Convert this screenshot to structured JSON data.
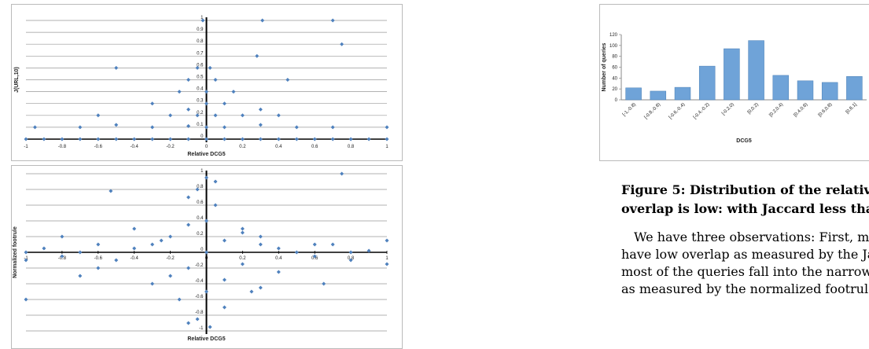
{
  "chart_data": [
    {
      "type": "scatter",
      "x_label": "Relative DCG5",
      "y_label": "J(URL,10)",
      "color": "#4f81bd",
      "grid": true,
      "xlim": [
        -1,
        1
      ],
      "xticks": [
        -1,
        -0.8,
        -0.6,
        -0.4,
        -0.2,
        0,
        0.2,
        0.4,
        0.6,
        0.8,
        1
      ],
      "ylim": [
        0,
        1
      ],
      "yticks": [
        0,
        0.1,
        0.2,
        0.3,
        0.4,
        0.5,
        0.6,
        0.7,
        0.8,
        0.9,
        1
      ],
      "x": [
        -1,
        -0.9,
        -0.8,
        -0.7,
        -0.6,
        -0.5,
        -0.4,
        -0.3,
        -0.2,
        -0.1,
        0,
        0.1,
        0.2,
        0.3,
        0.4,
        0.5,
        0.6,
        0.7,
        0.8,
        0.9,
        1,
        -0.95,
        -0.7,
        -0.5,
        -0.3,
        -0.1,
        0,
        0.1,
        0.3,
        0.5,
        0.7,
        1,
        -0.6,
        -0.2,
        -0.05,
        0.05,
        0.2,
        0.4,
        -0.3,
        -0.1,
        0,
        0.1,
        0.3,
        -0.15,
        0,
        0.15,
        -0.1,
        0.05,
        -0.05,
        0.02,
        -0.5,
        0.45,
        -0.02,
        0.28,
        0.31,
        0.7,
        0.75
      ],
      "y": [
        0,
        0,
        0,
        0,
        0,
        0,
        0,
        0,
        0,
        0,
        0,
        0,
        0,
        0,
        0,
        0,
        0,
        0,
        0,
        0,
        0,
        0.1,
        0.1,
        0.12,
        0.1,
        0.11,
        0.1,
        0.1,
        0.12,
        0.1,
        0.1,
        0.1,
        0.2,
        0.2,
        0.2,
        0.2,
        0.2,
        0.2,
        0.3,
        0.25,
        0.3,
        0.3,
        0.25,
        0.4,
        0.4,
        0.4,
        0.5,
        0.5,
        0.6,
        0.6,
        0.6,
        0.5,
        1,
        0.7,
        1,
        1,
        0.8
      ]
    },
    {
      "type": "scatter",
      "x_label": "Relative DCG5",
      "y_label": "Normalized footrule",
      "color": "#4f81bd",
      "grid": true,
      "xlim": [
        -1,
        1
      ],
      "xticks": [
        -1,
        -0.8,
        -0.6,
        -0.4,
        -0.2,
        0,
        0.2,
        0.4,
        0.6,
        0.8,
        1
      ],
      "ylim": [
        -1,
        1
      ],
      "yticks": [
        -1,
        -0.8,
        -0.6,
        -0.4,
        -0.2,
        0,
        0.2,
        0.4,
        0.6,
        0.8,
        1
      ],
      "x": [
        -1,
        -0.9,
        -0.8,
        -0.7,
        -0.6,
        -0.5,
        -0.4,
        -0.3,
        -0.2,
        -0.1,
        0,
        0.1,
        0.2,
        0.3,
        0.4,
        0.5,
        0.6,
        0.7,
        0.8,
        0.9,
        1,
        -1,
        -0.8,
        -0.6,
        -0.4,
        -0.2,
        0,
        0.2,
        0.4,
        0.6,
        0.8,
        1,
        -0.3,
        -0.1,
        0.1,
        0.3,
        -0.25,
        0,
        0.2,
        -0.15,
        0.05,
        0.25,
        -0.1,
        0.1,
        -0.05,
        0.02,
        0.3,
        0.75,
        -0.53,
        -0.1,
        0,
        -0.05,
        0.05,
        -0.7,
        0.65,
        -1
      ],
      "y": [
        0,
        0.05,
        -0.05,
        0,
        0.1,
        -0.1,
        0.05,
        0.1,
        0.2,
        -0.2,
        0,
        0.15,
        -0.15,
        0.1,
        0.05,
        0,
        -0.05,
        0.1,
        0,
        0.02,
        0.15,
        -0.1,
        0.2,
        -0.2,
        0.3,
        -0.3,
        0.4,
        0.3,
        -0.25,
        0.1,
        -0.1,
        -0.15,
        -0.4,
        0.35,
        -0.35,
        0.2,
        0.15,
        -0.5,
        0.25,
        -0.6,
        0.6,
        -0.5,
        0.7,
        -0.7,
        0.8,
        -0.95,
        -0.45,
        1,
        0.78,
        -0.9,
        0.95,
        -0.85,
        0.9,
        -0.3,
        -0.4,
        -0.6
      ]
    },
    {
      "type": "bar",
      "x_label": "DCG5",
      "y_label": "Number of queries",
      "color": "#6fa3d8",
      "grid": false,
      "categories": [
        "[-1,-0.8)",
        "[-0.8,-0.6)",
        "[-0.6,-0.4)",
        "[-0.4,-0.2)",
        "[-0.2,0)",
        "[0,0.2)",
        "[0.2,0.4)",
        "[0.4,0.6)",
        "[0.6,0.8)",
        "[0.8,1]"
      ],
      "values": [
        22,
        16,
        23,
        62,
        94,
        109,
        45,
        35,
        32,
        43
      ],
      "ylim": [
        0,
        120
      ],
      "yticks": [
        0,
        20,
        40,
        60,
        80,
        100,
        120
      ]
    }
  ],
  "caption": [
    "Figure 5: Distribution of the relative I",
    "overlap is low: with Jaccard less than"
  ],
  "body": [
    "We have three observations: First, mos",
    "have low overlap as measured by the Jacca",
    "most of the queries fall into the narrow in",
    "as measured by the normalized footrule; th"
  ]
}
